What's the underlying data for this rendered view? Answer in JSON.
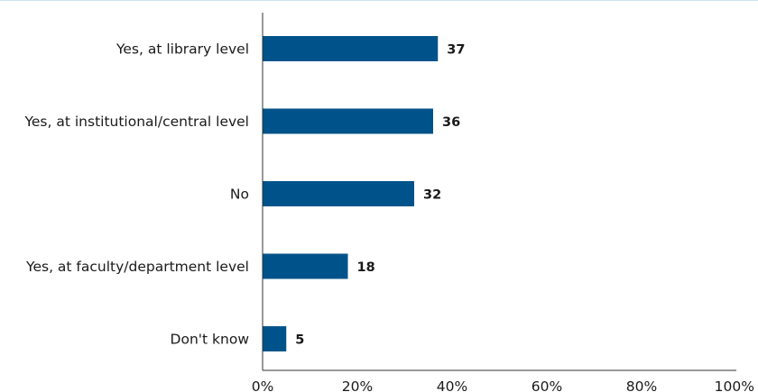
{
  "chart_data": {
    "type": "bar",
    "orientation": "horizontal",
    "categories": [
      "Yes, at library level",
      "Yes, at institutional/central level",
      "No",
      "Yes, at faculty/department level",
      "Don't know"
    ],
    "values": [
      37,
      36,
      32,
      18,
      5
    ],
    "value_labels": [
      "37",
      "36",
      "32",
      "18",
      "5"
    ],
    "xlim": [
      0,
      100
    ],
    "xticks": [
      0,
      20,
      40,
      60,
      80,
      100
    ],
    "xtick_labels": [
      "0%",
      "20%",
      "40%",
      "60%",
      "80%",
      "100%"
    ],
    "title": "",
    "xlabel": "",
    "ylabel": "",
    "grid": false,
    "colors": {
      "bar": "#00538a",
      "axis": "#333333",
      "top_rule": "#cfe3f0"
    }
  }
}
